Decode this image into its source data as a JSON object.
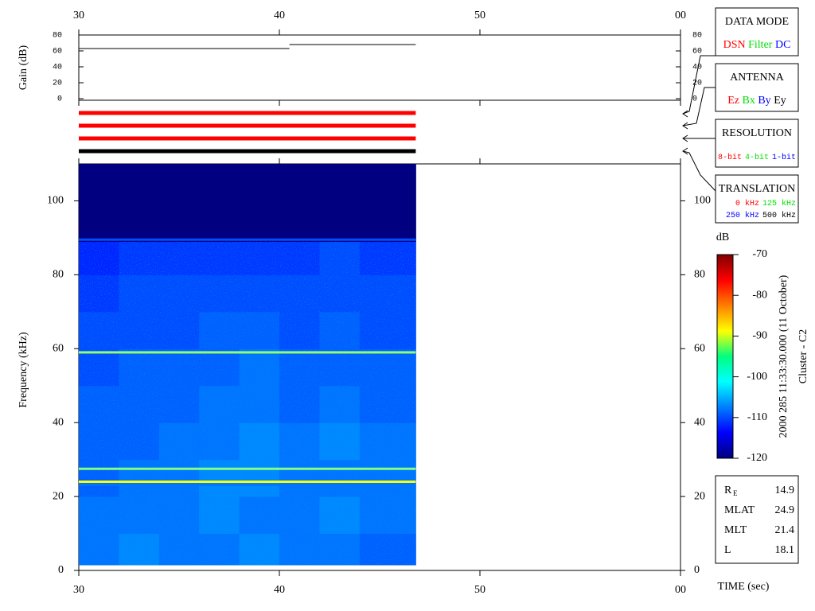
{
  "chart_data": [
    {
      "type": "line",
      "ylabel": "Gain (dB)",
      "xlim": [
        30,
        60
      ],
      "xticks": [
        30,
        40,
        50,
        {
          "value": 60,
          "label": "00"
        }
      ],
      "ylim": [
        0,
        80
      ],
      "yticks": [
        0,
        20,
        40,
        60,
        80
      ],
      "series": [
        {
          "color": "#000000",
          "x": [
            30,
            40.5,
            40.5,
            40.5,
            46.8
          ],
          "values": [
            63,
            63,
            null,
            68,
            68
          ]
        }
      ]
    },
    {
      "type": "status",
      "xlim": [
        30,
        60
      ],
      "series": [
        {
          "color": "#ff0000",
          "x": [
            30,
            46.8
          ]
        },
        {
          "color": "#ff0000",
          "x": [
            30,
            46.8
          ]
        },
        {
          "color": "#ff0000",
          "x": [
            30,
            46.8
          ]
        },
        {
          "color": "#000000",
          "x": [
            30,
            46.8
          ]
        }
      ]
    },
    {
      "type": "heatmap",
      "ylabel": "Frequency (kHz)",
      "xlabel": "TIME (sec)",
      "xlim": [
        30,
        60
      ],
      "xticks": [
        30,
        40,
        50,
        {
          "value": 60,
          "label": "00"
        }
      ],
      "ylim": [
        0,
        110
      ],
      "yticks": [
        0,
        20,
        40,
        60,
        80,
        100
      ],
      "x": [
        30,
        32,
        34,
        36,
        38,
        40,
        42,
        44,
        46.8
      ],
      "y": [
        1.5,
        10,
        20,
        30,
        40,
        50,
        60,
        70,
        80,
        89,
        110
      ],
      "values": [
        [
          -108,
          -107,
          -108,
          -108,
          -107,
          -108,
          -108,
          -109
        ],
        [
          -108,
          -108,
          -108,
          -107,
          -108,
          -108,
          -107,
          -108
        ],
        [
          -109,
          -108,
          -108,
          -107,
          -107,
          -108,
          -108,
          -108
        ],
        [
          -109,
          -109,
          -108,
          -108,
          -107,
          -108,
          -107,
          -108
        ],
        [
          -109,
          -109,
          -109,
          -108,
          -108,
          -109,
          -108,
          -109
        ],
        [
          -110,
          -109,
          -109,
          -109,
          -108,
          -109,
          -109,
          -109
        ],
        [
          -110,
          -110,
          -110,
          -109,
          -109,
          -110,
          -109,
          -110
        ],
        [
          -111,
          -110,
          -110,
          -110,
          -110,
          -110,
          -110,
          -110
        ],
        [
          -112,
          -111,
          -111,
          -111,
          -111,
          -111,
          -110,
          -111
        ],
        [
          -120,
          -120,
          -120,
          -120,
          -120,
          -120,
          -120,
          -120
        ]
      ],
      "lines": [
        {
          "y": 89.5,
          "value": -110
        },
        {
          "y": 59,
          "value": -94
        },
        {
          "y": 27.5,
          "value": -95
        },
        {
          "y": 24,
          "value": -89
        },
        {
          "y": 23.2,
          "value": -108
        }
      ]
    },
    {
      "type": "colorbar",
      "label": "dB",
      "ylim": [
        -120,
        -70
      ],
      "yticks": [
        -120,
        -110,
        -100,
        -90,
        -80,
        -70
      ]
    }
  ],
  "annotations": {
    "timestamp": "2000 285 11:33:30.000 (11 October)",
    "spacecraft": "Cluster - C2"
  },
  "panels": [
    {
      "title": "DATA MODE",
      "rows": [
        [
          {
            "label": "DSN",
            "color": "#ff0000"
          },
          {
            "label": "Filter",
            "color": "#00e000"
          },
          {
            "label": "DC",
            "color": "#0000ff"
          }
        ]
      ]
    },
    {
      "title": "ANTENNA",
      "rows": [
        [
          {
            "label": "Ez",
            "color": "#ff0000"
          },
          {
            "label": "Bx",
            "color": "#00e000"
          },
          {
            "label": "By",
            "color": "#0000ff"
          },
          {
            "label": "Ey",
            "color": "#000000"
          }
        ]
      ]
    },
    {
      "title": "RESOLUTION",
      "rows": [
        [
          {
            "label": "8-bit",
            "color": "#ff0000"
          },
          {
            "label": "4-bit",
            "color": "#00e000"
          },
          {
            "label": "1-bit",
            "color": "#0000ff"
          }
        ]
      ]
    },
    {
      "title": "TRANSLATION",
      "rows": [
        [
          {
            "label": "0 kHz",
            "color": "#ff0000"
          },
          {
            "label": "125 kHz",
            "color": "#00e000"
          }
        ],
        [
          {
            "label": "250 kHz",
            "color": "#0000ff"
          },
          {
            "label": "500 kHz",
            "color": "#000000"
          }
        ]
      ]
    }
  ],
  "info": {
    "rows": [
      {
        "label": "R",
        "sub": "E",
        "value": "14.9"
      },
      {
        "label": "MLAT",
        "value": "24.9"
      },
      {
        "label": "MLT",
        "value": "21.4"
      },
      {
        "label": "L",
        "value": "18.1"
      }
    ]
  }
}
